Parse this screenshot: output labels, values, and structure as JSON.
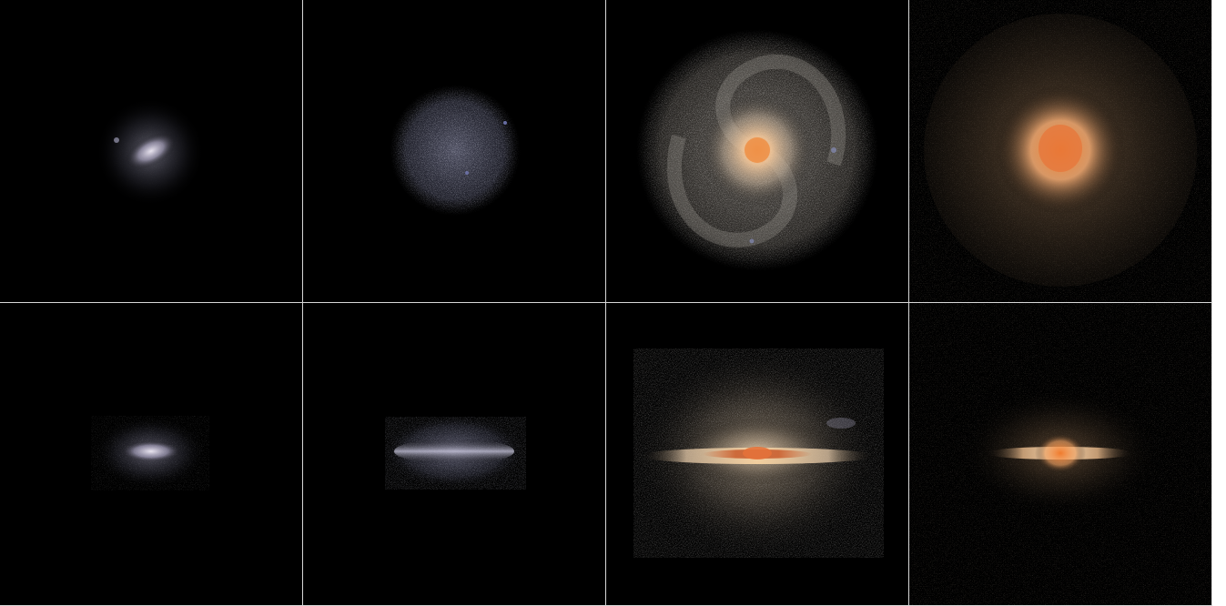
{
  "figure": {
    "rows": [
      "face-on",
      "edge-on"
    ],
    "columns": 4,
    "panels": [
      {
        "row": "face-on",
        "col": 1,
        "galaxy": "small-blue-disk",
        "core_color": "#e6e0ef",
        "halo_color": "#8e8ea8"
      },
      {
        "row": "face-on",
        "col": 2,
        "galaxy": "diffuse-blue-disk",
        "core_color": "#9fa2c2",
        "halo_color": "#6b6e8c"
      },
      {
        "row": "face-on",
        "col": 3,
        "galaxy": "large-spiral",
        "core_color": "#f0a060",
        "halo_color": "#b0a49a"
      },
      {
        "row": "face-on",
        "col": 4,
        "galaxy": "red-spheroid",
        "core_color": "#ee8a3c",
        "halo_color": "#a88867"
      },
      {
        "row": "edge-on",
        "col": 1,
        "galaxy": "small-blue-disk",
        "core_color": "#e6e0ef",
        "halo_color": "#8e8ea8"
      },
      {
        "row": "edge-on",
        "col": 2,
        "galaxy": "diffuse-blue-disk",
        "core_color": "#b6b4d2",
        "halo_color": "#6b6e8c"
      },
      {
        "row": "edge-on",
        "col": 3,
        "galaxy": "large-spiral",
        "core_color": "#d8743a",
        "halo_color": "#c2a88a"
      },
      {
        "row": "edge-on",
        "col": 4,
        "galaxy": "red-spheroid",
        "core_color": "#f0893a",
        "halo_color": "#a88867"
      }
    ],
    "background_color": "#000000",
    "divider_color": "#d8d8d8"
  }
}
